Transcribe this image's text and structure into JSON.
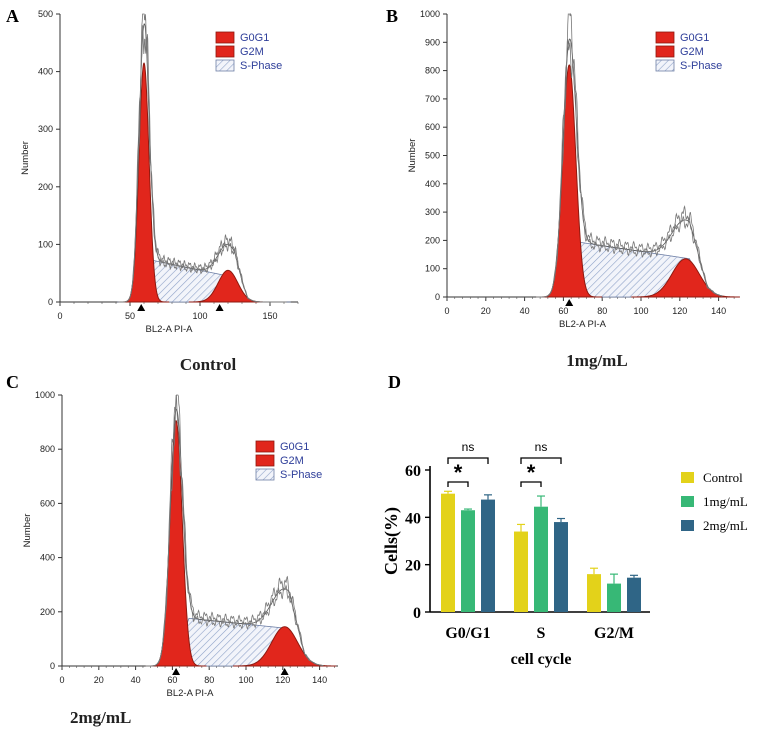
{
  "chart_data": [
    {
      "panel": "A",
      "type": "area",
      "title": "Control",
      "xlabel": "BL2-A PI-A",
      "ylabel": "Number",
      "xlim": [
        0,
        170
      ],
      "ylim": [
        0,
        500
      ],
      "xticks": [
        0,
        50,
        100,
        150
      ],
      "yticks": [
        0,
        100,
        200,
        300,
        400,
        500
      ],
      "g0g1_peak": {
        "x": 60,
        "y": 415,
        "sd": 3.6
      },
      "g2m_peak": {
        "x": 120,
        "y": 55,
        "sd": 7
      },
      "s_phase": {
        "x_start": 55,
        "x_end": 130,
        "y_start": 78,
        "y_end": 40
      },
      "markers_x": [
        58,
        114
      ],
      "legend": [
        "G0G1",
        "G2M",
        "S-Phase"
      ],
      "colors": {
        "fill": "#E1261C",
        "stroke": "#8E1A10",
        "s_phase": "#8FA3C8",
        "legend_text": "#2F3F9A"
      }
    },
    {
      "panel": "B",
      "type": "area",
      "title": "1mg/mL",
      "xlabel": "BL2-A PI-A",
      "ylabel": "Number",
      "xlim": [
        0,
        150
      ],
      "ylim": [
        0,
        1000
      ],
      "xticks": [
        0,
        20,
        40,
        60,
        80,
        100,
        120,
        140
      ],
      "yticks": [
        0,
        100,
        200,
        300,
        400,
        500,
        600,
        700,
        800,
        900,
        1000
      ],
      "g0g1_peak": {
        "x": 63,
        "y": 820,
        "sd": 3.4
      },
      "g2m_peak": {
        "x": 123,
        "y": 135,
        "sd": 7
      },
      "s_phase": {
        "x_start": 62,
        "x_end": 130,
        "y_start": 200,
        "y_end": 130
      },
      "markers_x": [
        63
      ],
      "legend": [
        "G0G1",
        "G2M",
        "S-Phase"
      ],
      "colors": {
        "fill": "#E1261C",
        "stroke": "#8E1A10",
        "s_phase": "#8FA3C8",
        "legend_text": "#2F3F9A"
      }
    },
    {
      "panel": "C",
      "type": "area",
      "title": "2mg/mL",
      "xlabel": "BL2-A PI-A",
      "ylabel": "Number",
      "xlim": [
        0,
        150
      ],
      "ylim": [
        0,
        1000
      ],
      "xticks": [
        0,
        20,
        40,
        60,
        80,
        100,
        120,
        140
      ],
      "yticks": [
        0,
        200,
        400,
        600,
        800,
        1000
      ],
      "g0g1_peak": {
        "x": 62,
        "y": 905,
        "sd": 3.3
      },
      "g2m_peak": {
        "x": 121,
        "y": 145,
        "sd": 7
      },
      "s_phase": {
        "x_start": 63,
        "x_end": 128,
        "y_start": 180,
        "y_end": 135
      },
      "markers_x": [
        62,
        121
      ],
      "legend": [
        "G0G1",
        "G2M",
        "S-Phase"
      ],
      "colors": {
        "fill": "#E1261C",
        "stroke": "#8E1A10",
        "s_phase": "#8FA3C8",
        "legend_text": "#2F3F9A"
      }
    },
    {
      "panel": "D",
      "type": "bar",
      "xlabel": "cell cycle",
      "ylabel": "Cells(%)",
      "ylim": [
        0,
        60
      ],
      "yticks": [
        0,
        20,
        40,
        60
      ],
      "categories": [
        "G0/G1",
        "S",
        "G2/M"
      ],
      "series": [
        {
          "name": "Control",
          "color": "#E3D21A",
          "values": [
            50,
            34,
            16
          ],
          "errors": [
            1,
            3,
            2.5
          ]
        },
        {
          "name": "1mg/mL",
          "color": "#37B876",
          "values": [
            43,
            44.5,
            12
          ],
          "errors": [
            0.5,
            4.5,
            4
          ]
        },
        {
          "name": "2mg/mL",
          "color": "#2F6586",
          "values": [
            47.5,
            38,
            14.5
          ],
          "errors": [
            2,
            1.5,
            1
          ]
        }
      ],
      "annotations": [
        {
          "category": 0,
          "ns_label": "ns",
          "star_label": "*"
        },
        {
          "category": 1,
          "ns_label": "ns",
          "star_label": "*"
        }
      ]
    }
  ]
}
